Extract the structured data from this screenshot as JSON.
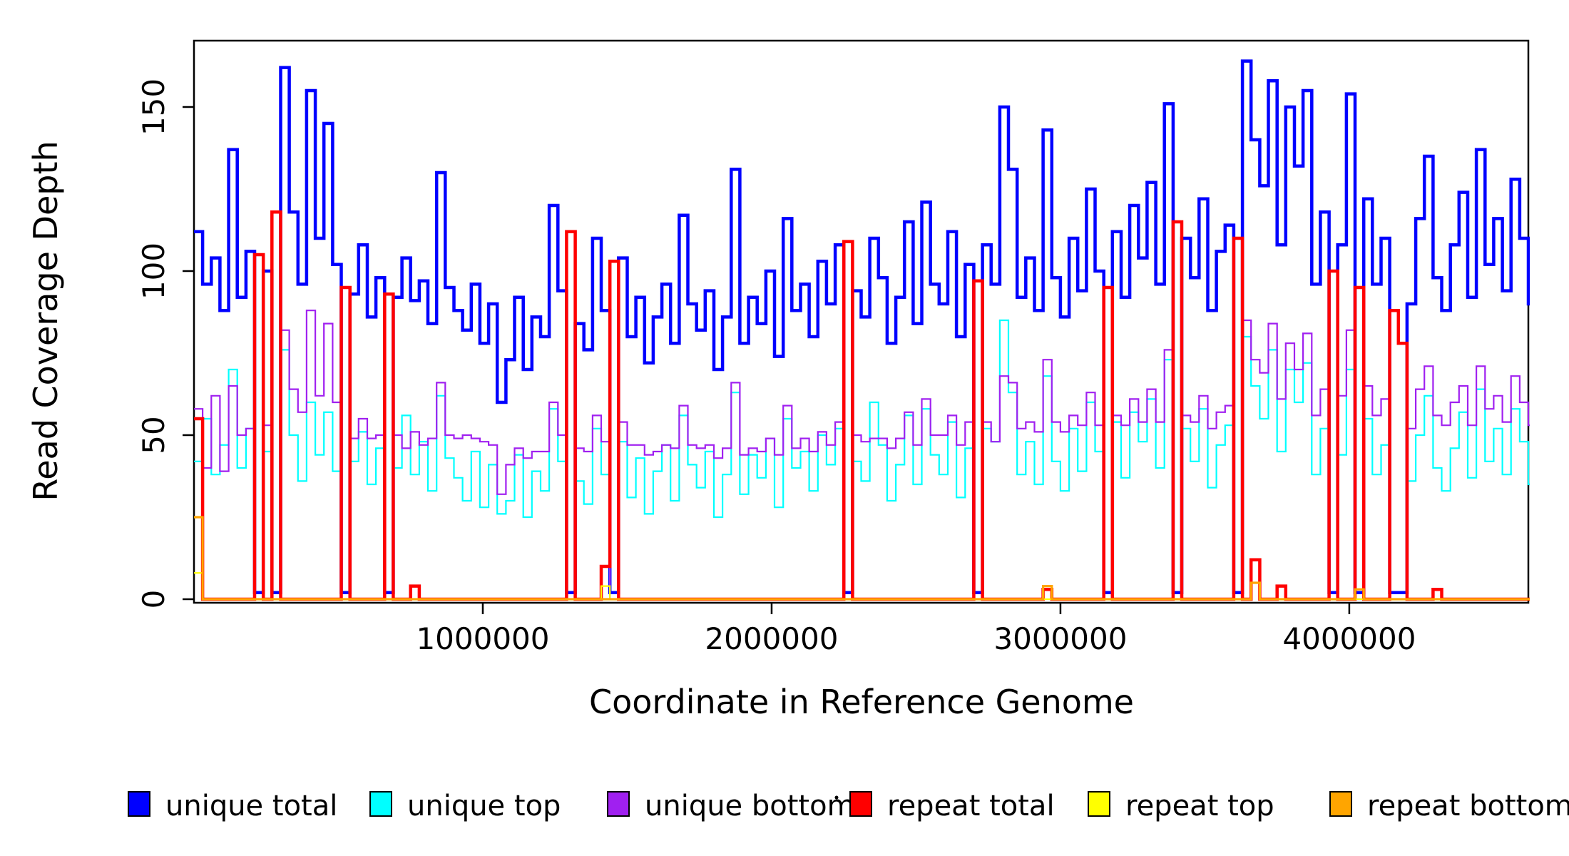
{
  "figure": {
    "background": "#ffffff",
    "xlabel": "Coordinate in Reference Genome",
    "ylabel": "Read Coverage Depth",
    "x_ticks": [
      1000000,
      2000000,
      3000000,
      4000000
    ],
    "x_tick_labels": [
      "1000000",
      "2000000",
      "3000000",
      "4000000"
    ],
    "y_ticks": [
      0,
      50,
      100,
      150
    ],
    "y_tick_labels": [
      "0",
      "50",
      "100",
      "150"
    ],
    "xlim": [
      0,
      4620000
    ],
    "ylim": [
      0,
      170
    ]
  },
  "legend": {
    "items": [
      {
        "label": "unique total",
        "color": "#0000FF"
      },
      {
        "label": "unique top",
        "color": "#00FFFF"
      },
      {
        "label": "unique bottom",
        "color": "#A020F0"
      },
      {
        "label": "repeat total",
        "color": "#FF0000"
      },
      {
        "label": "repeat top",
        "color": "#FFFF00"
      },
      {
        "label": "repeat bottom",
        "color": "#FFA500"
      }
    ]
  },
  "chart_data": {
    "type": "line",
    "line_style": "step",
    "title": "",
    "xlabel": "Coordinate in Reference Genome",
    "ylabel": "Read Coverage Depth",
    "xlim": [
      0,
      4620000
    ],
    "ylim": [
      0,
      170
    ],
    "grid": false,
    "legend_position": "bottom",
    "x_start": 0,
    "x_window": 30000,
    "x_unit": "bp",
    "series": [
      {
        "name": "unique total",
        "color": "#0000FF",
        "width": 4.5,
        "values": [
          112,
          96,
          104,
          88,
          137,
          92,
          106,
          2,
          100,
          2,
          162,
          118,
          96,
          155,
          110,
          145,
          102,
          2,
          93,
          108,
          86,
          98,
          2,
          92,
          104,
          91,
          97,
          84,
          130,
          95,
          88,
          82,
          96,
          78,
          90,
          60,
          73,
          92,
          70,
          86,
          80,
          120,
          94,
          2,
          84,
          76,
          110,
          88,
          2,
          104,
          80,
          92,
          72,
          86,
          96,
          78,
          117,
          90,
          82,
          94,
          70,
          86,
          131,
          78,
          92,
          84,
          100,
          74,
          116,
          88,
          96,
          80,
          103,
          90,
          108,
          2,
          94,
          86,
          110,
          98,
          78,
          92,
          115,
          84,
          121,
          96,
          90,
          112,
          80,
          102,
          2,
          108,
          96,
          150,
          131,
          92,
          104,
          88,
          143,
          98,
          86,
          110,
          94,
          125,
          100,
          2,
          112,
          92,
          120,
          104,
          127,
          96,
          151,
          2,
          110,
          98,
          122,
          88,
          106,
          114,
          2,
          164,
          140,
          126,
          158,
          108,
          150,
          132,
          155,
          96,
          118,
          2,
          108,
          154,
          2,
          122,
          96,
          110,
          2,
          2,
          90,
          116,
          135,
          98,
          88,
          108,
          124,
          92,
          137,
          102,
          116,
          94,
          128,
          110,
          90
        ]
      },
      {
        "name": "unique top",
        "color": "#00FFFF",
        "width": 2.2,
        "values": [
          42,
          55,
          38,
          47,
          70,
          40,
          52,
          0,
          45,
          0,
          76,
          50,
          36,
          60,
          44,
          57,
          39,
          0,
          42,
          51,
          35,
          46,
          0,
          40,
          56,
          38,
          48,
          33,
          62,
          43,
          37,
          30,
          45,
          28,
          41,
          26,
          30,
          44,
          25,
          39,
          33,
          58,
          42,
          0,
          36,
          29,
          52,
          38,
          0,
          48,
          31,
          43,
          26,
          39,
          47,
          30,
          56,
          41,
          34,
          45,
          25,
          38,
          63,
          32,
          44,
          37,
          49,
          28,
          55,
          40,
          45,
          33,
          50,
          41,
          52,
          0,
          42,
          36,
          60,
          47,
          30,
          41,
          56,
          35,
          58,
          44,
          38,
          54,
          31,
          46,
          0,
          52,
          48,
          85,
          63,
          38,
          48,
          35,
          68,
          42,
          33,
          52,
          39,
          60,
          45,
          0,
          54,
          37,
          57,
          48,
          61,
          40,
          73,
          0,
          52,
          42,
          58,
          34,
          47,
          53,
          0,
          80,
          65,
          55,
          76,
          45,
          70,
          60,
          72,
          38,
          52,
          0,
          44,
          70,
          0,
          55,
          38,
          47,
          0,
          0,
          36,
          50,
          62,
          40,
          33,
          46,
          57,
          37,
          64,
          42,
          52,
          38,
          58,
          48,
          35
        ]
      },
      {
        "name": "unique bottom",
        "color": "#A020F0",
        "width": 2.2,
        "values": [
          58,
          40,
          62,
          39,
          65,
          50,
          52,
          0,
          53,
          0,
          82,
          64,
          57,
          88,
          62,
          84,
          60,
          0,
          49,
          55,
          49,
          50,
          0,
          50,
          46,
          51,
          47,
          49,
          66,
          50,
          49,
          50,
          49,
          48,
          47,
          32,
          41,
          46,
          43,
          45,
          45,
          60,
          50,
          0,
          46,
          45,
          56,
          48,
          0,
          54,
          47,
          47,
          44,
          45,
          47,
          46,
          59,
          47,
          46,
          47,
          43,
          46,
          66,
          44,
          46,
          45,
          49,
          44,
          59,
          46,
          49,
          45,
          51,
          47,
          54,
          0,
          50,
          48,
          49,
          49,
          46,
          49,
          57,
          47,
          61,
          50,
          50,
          56,
          47,
          54,
          0,
          54,
          48,
          68,
          66,
          52,
          54,
          51,
          73,
          54,
          51,
          56,
          53,
          63,
          53,
          0,
          56,
          53,
          61,
          54,
          64,
          54,
          76,
          0,
          56,
          54,
          62,
          52,
          57,
          59,
          0,
          85,
          73,
          69,
          84,
          61,
          78,
          70,
          81,
          56,
          64,
          0,
          62,
          82,
          0,
          65,
          56,
          61,
          0,
          0,
          52,
          64,
          71,
          56,
          53,
          60,
          65,
          53,
          71,
          58,
          62,
          54,
          68,
          60,
          53
        ]
      },
      {
        "name": "repeat total",
        "color": "#FF0000",
        "width": 4.5,
        "values": {
          "length": 155,
          "default": 0,
          "points": {
            "0": 55,
            "7": 105,
            "9": 118,
            "17": 95,
            "22": 93,
            "25": 4,
            "43": 112,
            "47": 10,
            "48": 103,
            "75": 109,
            "90": 97,
            "98": 3,
            "105": 95,
            "113": 115,
            "120": 110,
            "122": 12,
            "125": 4,
            "131": 100,
            "134": 95,
            "138": 88,
            "139": 78,
            "143": 3
          }
        }
      },
      {
        "name": "repeat top",
        "color": "#FFFF00",
        "width": 2.2,
        "values": {
          "length": 155,
          "default": 0,
          "points": {
            "0": 8,
            "47": 4,
            "122": 5
          }
        }
      },
      {
        "name": "repeat bottom",
        "color": "#FFA500",
        "width": 3.2,
        "values": {
          "length": 155,
          "default": 0,
          "points": {
            "0": 25,
            "98": 4,
            "122": 5,
            "134": 3
          }
        }
      }
    ]
  }
}
